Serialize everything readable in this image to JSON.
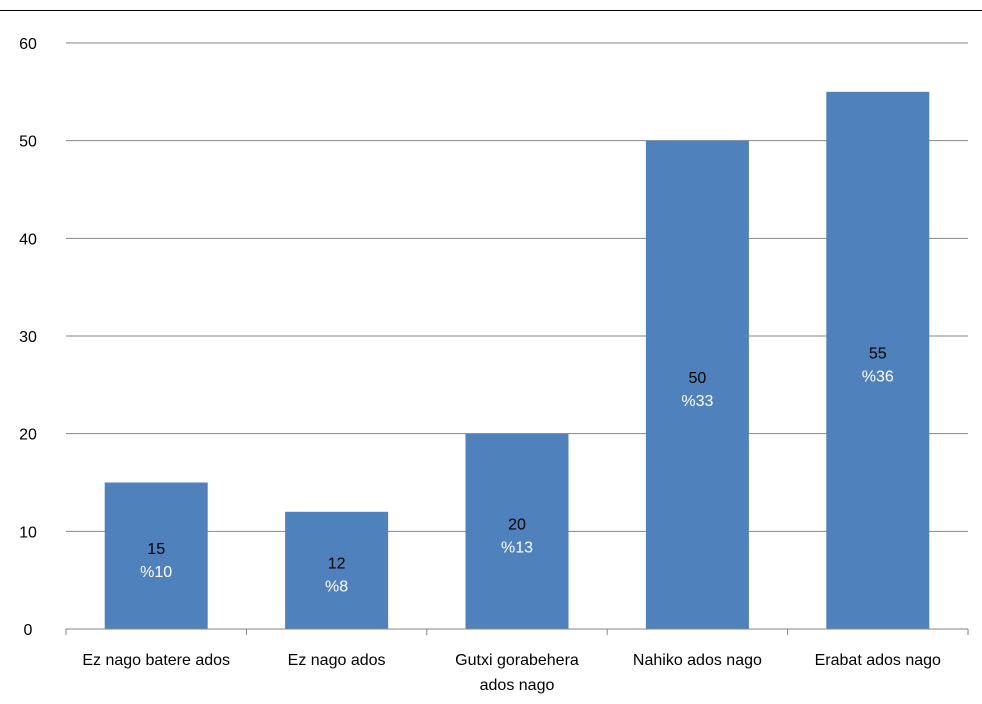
{
  "chart_data": {
    "type": "bar",
    "categories": [
      [
        "Ez nago batere ados"
      ],
      [
        "Ez nago ados"
      ],
      [
        "Gutxi gorabehera",
        "ados nago"
      ],
      [
        "Nahiko ados nago"
      ],
      [
        "Erabat ados nago"
      ]
    ],
    "values": [
      15,
      12,
      20,
      50,
      55
    ],
    "percent_labels": [
      "%10",
      "%8",
      "%13",
      "%33",
      "%36"
    ],
    "ylim": [
      0,
      60
    ],
    "yticks": [
      0,
      10,
      20,
      30,
      40,
      50,
      60
    ],
    "grid": true,
    "title": "",
    "xlabel": "",
    "ylabel": "",
    "colors": {
      "bar": "#4F81BD",
      "grid": "#868686",
      "axis": "#868686",
      "value_text": "#000000",
      "percent_text": "#ffffff"
    }
  }
}
